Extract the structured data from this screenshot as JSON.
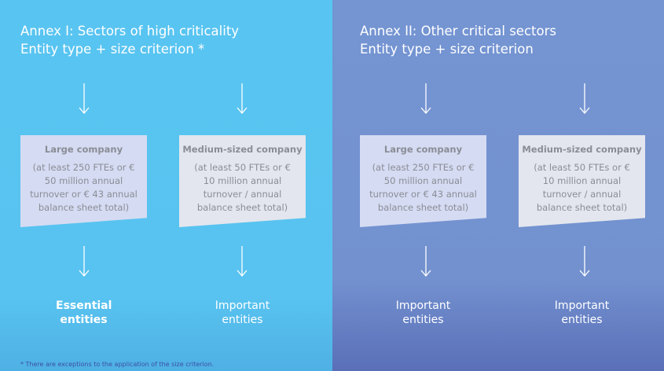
{
  "annex1": {
    "title_line1": "Annex I: Sectors of high criticality",
    "title_line2": "Entity type + size criterion *",
    "boxes": [
      {
        "heading": "Large company",
        "text": "(at least 250 FTEs or € 50 million annual turnover or € 43 annual balance sheet total)"
      },
      {
        "heading": "Medium-sized company",
        "text": "(at least 50 FTEs or € 10 million annual turnover / annual balance sheet total)"
      }
    ],
    "outcomes": [
      "Essential entities",
      "Important entities"
    ]
  },
  "annex2": {
    "title_line1": "Annex II: Other critical sectors",
    "title_line2": "Entity type + size criterion",
    "boxes": [
      {
        "heading": "Large company",
        "text": "(at least 250 FTEs or € 50 million annual turnover or € 43 annual balance sheet total)"
      },
      {
        "heading": "Medium-sized company",
        "text": "(at least 50 FTEs or € 10 million annual turnover / annual balance sheet total)"
      }
    ],
    "outcomes": [
      "Important entities",
      "Important entities"
    ]
  },
  "footnote": "* There are exceptions to the application of the size criterion.",
  "colors": {
    "annex1_bg": "#58c3f0",
    "annex2_bg": "#7391cf"
  }
}
